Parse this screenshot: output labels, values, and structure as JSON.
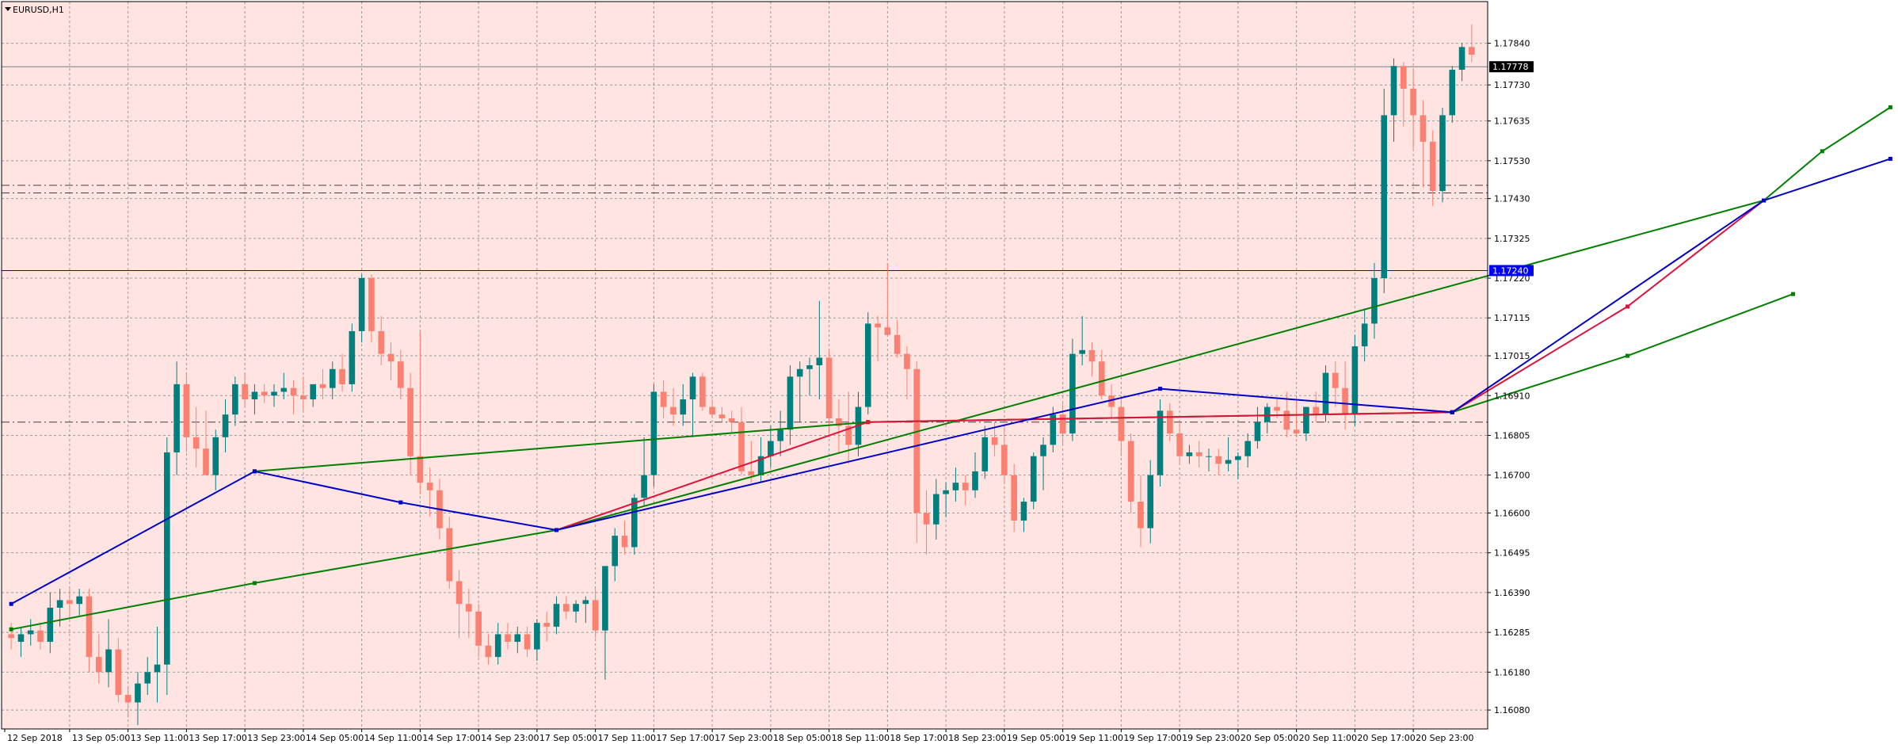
{
  "window": {
    "symbol_label": "EURUSD,H1"
  },
  "colors": {
    "background": "#ffe4e1",
    "grid": "#9a9a9a",
    "bull": "#007f7f",
    "bear": "#fa8072",
    "blue_line": "#0000c8",
    "red_line": "#dc143c",
    "green_line": "#008000",
    "bid_line": "#708090",
    "hline_blue": "#0000ff",
    "hline_dash": "#404040"
  },
  "chart_data": {
    "type": "candlestick",
    "symbol": "EURUSD",
    "timeframe": "H1",
    "y_ticks": [
      1.1784,
      1.1773,
      1.17635,
      1.1753,
      1.1743,
      1.17325,
      1.1722,
      1.17115,
      1.17015,
      1.1691,
      1.16805,
      1.167,
      1.166,
      1.16495,
      1.1639,
      1.16285,
      1.1618,
      1.1608
    ],
    "ylim": [
      1.1603,
      1.1795
    ],
    "x_labels": [
      "12 Sep 2018",
      "13 Sep 05:00",
      "13 Sep 11:00",
      "13 Sep 17:00",
      "13 Sep 23:00",
      "14 Sep 05:00",
      "14 Sep 11:00",
      "14 Sep 17:00",
      "14 Sep 23:00",
      "17 Sep 05:00",
      "17 Sep 11:00",
      "17 Sep 17:00",
      "17 Sep 23:00",
      "18 Sep 05:00",
      "18 Sep 11:00",
      "18 Sep 17:00",
      "18 Sep 23:00",
      "19 Sep 05:00",
      "19 Sep 11:00",
      "19 Sep 17:00",
      "19 Sep 23:00",
      "20 Sep 05:00",
      "20 Sep 11:00",
      "20 Sep 17:00",
      "20 Sep 23:00"
    ],
    "price_tags": [
      {
        "value": "1.17778",
        "price": 1.17778,
        "color": "#000000"
      },
      {
        "value": "1.17240",
        "price": 1.1724,
        "color": "#0000ff"
      }
    ],
    "candles": [
      [
        1.1628,
        1.1631,
        1.1624,
        1.1627
      ],
      [
        1.1626,
        1.163,
        1.1622,
        1.1628
      ],
      [
        1.1628,
        1.1632,
        1.1625,
        1.1629
      ],
      [
        1.1629,
        1.1631,
        1.1624,
        1.1626
      ],
      [
        1.1626,
        1.1639,
        1.1623,
        1.1635
      ],
      [
        1.1635,
        1.164,
        1.163,
        1.1637
      ],
      [
        1.1637,
        1.164,
        1.1633,
        1.1636
      ],
      [
        1.1636,
        1.164,
        1.1633,
        1.1638
      ],
      [
        1.1638,
        1.164,
        1.1618,
        1.1622
      ],
      [
        1.1622,
        1.1628,
        1.1615,
        1.1618
      ],
      [
        1.1618,
        1.1632,
        1.1614,
        1.1624
      ],
      [
        1.1624,
        1.1627,
        1.161,
        1.1612
      ],
      [
        1.1612,
        1.1614,
        1.1606,
        1.161
      ],
      [
        1.161,
        1.1618,
        1.1604,
        1.1615
      ],
      [
        1.1615,
        1.1622,
        1.1612,
        1.1618
      ],
      [
        1.1618,
        1.163,
        1.161,
        1.162
      ],
      [
        1.162,
        1.168,
        1.1612,
        1.1676
      ],
      [
        1.1676,
        1.17,
        1.167,
        1.1694
      ],
      [
        1.1694,
        1.1697,
        1.1676,
        1.168
      ],
      [
        1.168,
        1.1688,
        1.1672,
        1.1677
      ],
      [
        1.1677,
        1.1687,
        1.167,
        1.167
      ],
      [
        1.167,
        1.1682,
        1.1666,
        1.168
      ],
      [
        1.168,
        1.169,
        1.1676,
        1.1686
      ],
      [
        1.1686,
        1.1696,
        1.1683,
        1.1694
      ],
      [
        1.1694,
        1.1697,
        1.1688,
        1.169
      ],
      [
        1.169,
        1.1694,
        1.1686,
        1.1692
      ],
      [
        1.1692,
        1.1694,
        1.1689,
        1.1691
      ],
      [
        1.1691,
        1.1694,
        1.1688,
        1.1692
      ],
      [
        1.1692,
        1.1697,
        1.169,
        1.1693
      ],
      [
        1.1693,
        1.1695,
        1.1686,
        1.1691
      ],
      [
        1.1691,
        1.1696,
        1.1687,
        1.169
      ],
      [
        1.169,
        1.1694,
        1.1688,
        1.1694
      ],
      [
        1.1694,
        1.1698,
        1.169,
        1.1693
      ],
      [
        1.1693,
        1.17,
        1.169,
        1.1698
      ],
      [
        1.1698,
        1.1702,
        1.1692,
        1.1694
      ],
      [
        1.1694,
        1.171,
        1.1692,
        1.1708
      ],
      [
        1.1708,
        1.1723,
        1.1705,
        1.1722
      ],
      [
        1.1722,
        1.1723,
        1.1705,
        1.1708
      ],
      [
        1.1708,
        1.1712,
        1.1699,
        1.1702
      ],
      [
        1.1702,
        1.1705,
        1.1695,
        1.17
      ],
      [
        1.17,
        1.1703,
        1.169,
        1.1693
      ],
      [
        1.1693,
        1.1697,
        1.167,
        1.1675
      ],
      [
        1.1675,
        1.1708,
        1.1665,
        1.1668
      ],
      [
        1.1668,
        1.1672,
        1.1659,
        1.1666
      ],
      [
        1.1666,
        1.1669,
        1.1653,
        1.1656
      ],
      [
        1.1656,
        1.1659,
        1.164,
        1.1642
      ],
      [
        1.1642,
        1.1645,
        1.1627,
        1.1636
      ],
      [
        1.1636,
        1.164,
        1.1627,
        1.1634
      ],
      [
        1.1634,
        1.1636,
        1.1622,
        1.1625
      ],
      [
        1.1625,
        1.1628,
        1.162,
        1.1622
      ],
      [
        1.1622,
        1.1631,
        1.162,
        1.1628
      ],
      [
        1.1628,
        1.1631,
        1.1624,
        1.1626
      ],
      [
        1.1626,
        1.163,
        1.1623,
        1.1628
      ],
      [
        1.1628,
        1.163,
        1.1622,
        1.1624
      ],
      [
        1.1624,
        1.1632,
        1.1621,
        1.1631
      ],
      [
        1.1631,
        1.1634,
        1.1626,
        1.163
      ],
      [
        1.163,
        1.1638,
        1.1628,
        1.1636
      ],
      [
        1.1636,
        1.1638,
        1.1632,
        1.1634
      ],
      [
        1.1634,
        1.1637,
        1.1631,
        1.1636
      ],
      [
        1.1636,
        1.1638,
        1.1631,
        1.1637
      ],
      [
        1.1637,
        1.164,
        1.1627,
        1.1629
      ],
      [
        1.1629,
        1.1646,
        1.1616,
        1.1646
      ],
      [
        1.1646,
        1.1656,
        1.1642,
        1.1654
      ],
      [
        1.1654,
        1.1658,
        1.1649,
        1.1651
      ],
      [
        1.1651,
        1.1665,
        1.1649,
        1.1664
      ],
      [
        1.1664,
        1.168,
        1.1662,
        1.167
      ],
      [
        1.167,
        1.1694,
        1.1667,
        1.1692
      ],
      [
        1.1692,
        1.1695,
        1.1685,
        1.1688
      ],
      [
        1.1688,
        1.1693,
        1.1683,
        1.1686
      ],
      [
        1.1686,
        1.1694,
        1.1683,
        1.169
      ],
      [
        1.169,
        1.1697,
        1.168,
        1.1696
      ],
      [
        1.1696,
        1.1697,
        1.1687,
        1.1688
      ],
      [
        1.1688,
        1.169,
        1.1685,
        1.1686
      ],
      [
        1.1686,
        1.1688,
        1.1684,
        1.1685
      ],
      [
        1.1685,
        1.1687,
        1.1681,
        1.1684
      ],
      [
        1.1684,
        1.1688,
        1.167,
        1.1671
      ],
      [
        1.1671,
        1.1679,
        1.1668,
        1.167
      ],
      [
        1.167,
        1.168,
        1.1668,
        1.1675
      ],
      [
        1.1675,
        1.1683,
        1.1672,
        1.1679
      ],
      [
        1.1679,
        1.1687,
        1.1675,
        1.1682
      ],
      [
        1.1682,
        1.1699,
        1.1678,
        1.1696
      ],
      [
        1.1696,
        1.17,
        1.1684,
        1.1698
      ],
      [
        1.1698,
        1.1701,
        1.1691,
        1.1699
      ],
      [
        1.1699,
        1.1716,
        1.169,
        1.1701
      ],
      [
        1.1701,
        1.1703,
        1.168,
        1.1685
      ],
      [
        1.1685,
        1.169,
        1.1676,
        1.1683
      ],
      [
        1.1683,
        1.1692,
        1.1673,
        1.1678
      ],
      [
        1.1678,
        1.1692,
        1.1675,
        1.1688
      ],
      [
        1.1688,
        1.1713,
        1.1686,
        1.171
      ],
      [
        1.171,
        1.1712,
        1.17,
        1.1709
      ],
      [
        1.1709,
        1.1726,
        1.1707,
        1.1707
      ],
      [
        1.1707,
        1.1711,
        1.1701,
        1.1702
      ],
      [
        1.1702,
        1.1704,
        1.169,
        1.1698
      ],
      [
        1.1698,
        1.17,
        1.1652,
        1.166
      ],
      [
        1.166,
        1.1666,
        1.1649,
        1.1657
      ],
      [
        1.1657,
        1.1669,
        1.1653,
        1.1665
      ],
      [
        1.1665,
        1.1668,
        1.1659,
        1.1666
      ],
      [
        1.1666,
        1.1672,
        1.1663,
        1.1668
      ],
      [
        1.1668,
        1.167,
        1.1662,
        1.1666
      ],
      [
        1.1666,
        1.1676,
        1.1664,
        1.1671
      ],
      [
        1.1671,
        1.1683,
        1.1669,
        1.168
      ],
      [
        1.168,
        1.1684,
        1.1675,
        1.1678
      ],
      [
        1.1678,
        1.1683,
        1.1668,
        1.167
      ],
      [
        1.167,
        1.1673,
        1.1655,
        1.1658
      ],
      [
        1.1658,
        1.1664,
        1.1655,
        1.1663
      ],
      [
        1.1663,
        1.1676,
        1.1661,
        1.1675
      ],
      [
        1.1675,
        1.168,
        1.1666,
        1.1678
      ],
      [
        1.1678,
        1.1688,
        1.1676,
        1.1686
      ],
      [
        1.1686,
        1.1689,
        1.1678,
        1.1681
      ],
      [
        1.1681,
        1.1706,
        1.1679,
        1.1702
      ],
      [
        1.1702,
        1.1712,
        1.1699,
        1.1703
      ],
      [
        1.1703,
        1.1705,
        1.1696,
        1.17
      ],
      [
        1.17,
        1.1703,
        1.169,
        1.1691
      ],
      [
        1.1691,
        1.1694,
        1.1685,
        1.1688
      ],
      [
        1.1688,
        1.1691,
        1.1675,
        1.1679
      ],
      [
        1.1679,
        1.1681,
        1.166,
        1.1663
      ],
      [
        1.1663,
        1.167,
        1.1651,
        1.1656
      ],
      [
        1.1656,
        1.1674,
        1.1652,
        1.167
      ],
      [
        1.167,
        1.169,
        1.1667,
        1.1687
      ],
      [
        1.1687,
        1.1689,
        1.1679,
        1.1681
      ],
      [
        1.1681,
        1.1684,
        1.1673,
        1.1675
      ],
      [
        1.1675,
        1.1678,
        1.1673,
        1.1676
      ],
      [
        1.1676,
        1.1679,
        1.1672,
        1.1675
      ],
      [
        1.1675,
        1.1677,
        1.1671,
        1.1675
      ],
      [
        1.1675,
        1.1677,
        1.167,
        1.1673
      ],
      [
        1.1673,
        1.168,
        1.1671,
        1.1674
      ],
      [
        1.1674,
        1.1676,
        1.1669,
        1.1675
      ],
      [
        1.1675,
        1.1681,
        1.1672,
        1.1679
      ],
      [
        1.1679,
        1.1688,
        1.1677,
        1.1684
      ],
      [
        1.1684,
        1.1689,
        1.1681,
        1.1688
      ],
      [
        1.1688,
        1.169,
        1.1685,
        1.1687
      ],
      [
        1.1687,
        1.1692,
        1.168,
        1.1682
      ],
      [
        1.1682,
        1.169,
        1.168,
        1.1681
      ],
      [
        1.1681,
        1.1688,
        1.1679,
        1.1688
      ],
      [
        1.1688,
        1.1692,
        1.1684,
        1.1686
      ],
      [
        1.1686,
        1.1699,
        1.1684,
        1.1697
      ],
      [
        1.1697,
        1.17,
        1.1688,
        1.1693
      ],
      [
        1.1693,
        1.17,
        1.1682,
        1.1686
      ],
      [
        1.1686,
        1.1707,
        1.1683,
        1.1704
      ],
      [
        1.1704,
        1.1714,
        1.17,
        1.171
      ],
      [
        1.171,
        1.1726,
        1.1706,
        1.1722
      ],
      [
        1.1722,
        1.1772,
        1.1718,
        1.1765
      ],
      [
        1.1765,
        1.178,
        1.1758,
        1.1778
      ],
      [
        1.1778,
        1.1779,
        1.1762,
        1.1772
      ],
      [
        1.1772,
        1.1777,
        1.1756,
        1.1765
      ],
      [
        1.1765,
        1.1769,
        1.1746,
        1.1758
      ],
      [
        1.1758,
        1.1761,
        1.1741,
        1.1745
      ],
      [
        1.1745,
        1.1767,
        1.1742,
        1.1765
      ],
      [
        1.1765,
        1.1778,
        1.1763,
        1.1777
      ],
      [
        1.1777,
        1.1784,
        1.1774,
        1.1783
      ],
      [
        1.1783,
        1.1789,
        1.1779,
        1.1781
      ]
    ],
    "hlines": [
      {
        "price": 1.17778,
        "color": "#708090",
        "dash": ""
      },
      {
        "price": 1.1724,
        "color": "#0000ff",
        "dash": ""
      },
      {
        "price": 1.17465,
        "color": "#404040",
        "dash": "10,4,2,4"
      },
      {
        "price": 1.17445,
        "color": "#404040",
        "dash": "10,4,2,4"
      },
      {
        "price": 1.1684,
        "color": "#404040",
        "dash": "10,4,2,4"
      }
    ],
    "blue_lines": [
      [
        [
          0,
          1.1636
        ],
        [
          25,
          1.1671
        ],
        [
          40,
          1.16628
        ],
        [
          56,
          1.16555
        ],
        [
          118,
          1.16928
        ],
        [
          148,
          1.16866
        ],
        [
          180,
          1.17425
        ],
        [
          193,
          1.17535
        ]
      ]
    ],
    "red_lines": [
      [
        [
          56,
          1.16555
        ],
        [
          88,
          1.1684
        ],
        [
          148,
          1.16866
        ],
        [
          166,
          1.17145
        ],
        [
          180,
          1.17425
        ]
      ]
    ],
    "green_lines": [
      [
        [
          0,
          1.16293
        ],
        [
          25,
          1.16415
        ],
        [
          56,
          1.16555
        ],
        [
          180,
          1.17425
        ],
        [
          186,
          1.17555
        ],
        [
          193,
          1.17671
        ]
      ],
      [
        [
          25,
          1.1671
        ],
        [
          88,
          1.1684
        ],
        [
          148,
          1.16866
        ]
      ],
      [
        [
          148,
          1.16866
        ],
        [
          166,
          1.17015
        ],
        [
          183,
          1.17178
        ]
      ]
    ]
  }
}
